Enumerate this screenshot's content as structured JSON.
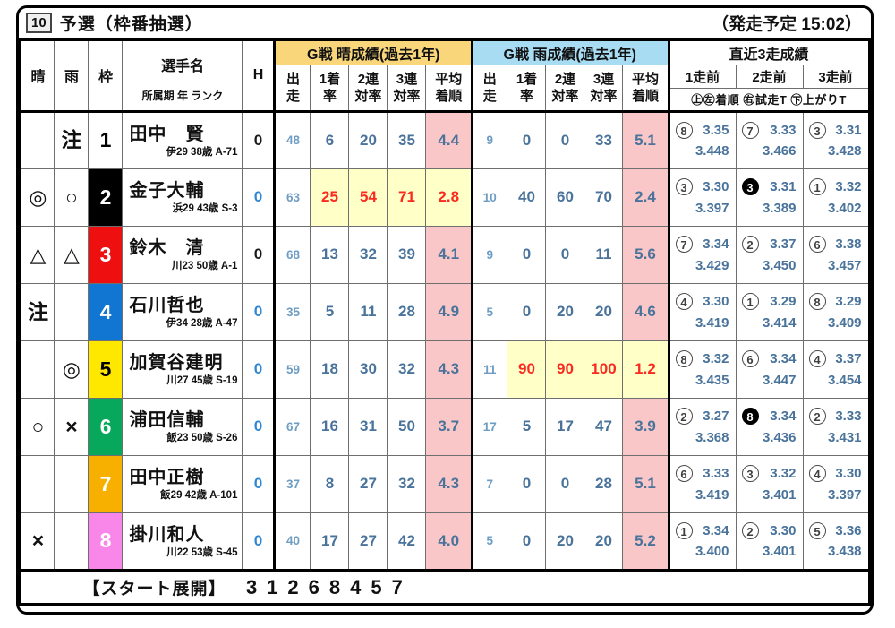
{
  "page": {
    "race_number": "10",
    "race_title": "予選（枠番抽選）",
    "start_time": "（発走予定 15:02）"
  },
  "header": {
    "sun": "晴",
    "rain": "雨",
    "frame": "枠",
    "racer_name": "選手名",
    "racer_sub": "所属期 年 ランク",
    "handicap": "H",
    "sunny_group": "G戦 晴成績(過去1年)",
    "rain_group": "G戦 雨成績(過去1年)",
    "recent_group": "直近3走成績",
    "stat_cols": [
      "出\n走",
      "1着\n率",
      "2連\n対率",
      "3連\n対率",
      "平均\n着順"
    ],
    "recent_cols": [
      "1走前",
      "2走前",
      "3走前"
    ],
    "recent_legend": "㊤㊧着順 ㊨試走T ㊦上がりT"
  },
  "colors": {
    "sunny_header": "#f9d679",
    "rain_header": "#a7dcf3",
    "pink_cell": "#f9c7c7",
    "highlight_cell": "#ffffc8",
    "red_text": "#fb2a20",
    "stat_text": "#49739b",
    "starts_text": "#6e9dc4",
    "h_blue": "#2f86d2",
    "h_dark": "#1a1a1a",
    "rank_text": "#3f3f3f"
  },
  "rows": [
    {
      "sun": "",
      "rain": "注",
      "frame": "1",
      "frame_bg": "#ffffff",
      "frame_fg": "#000000",
      "name": "田中　賢",
      "info": "伊29 38歳 A-71",
      "h": "0",
      "h_style": "dark",
      "sunny": [
        "48",
        "6",
        "20",
        "35",
        "4.4"
      ],
      "sunny_hl": false,
      "rain_stats": [
        "9",
        "0",
        "0",
        "33",
        "5.1"
      ],
      "rain_hl": false,
      "recent": [
        {
          "rank": "8",
          "filled": false,
          "t1": "3.35",
          "t2": "3.448"
        },
        {
          "rank": "7",
          "filled": false,
          "t1": "3.33",
          "t2": "3.466"
        },
        {
          "rank": "3",
          "filled": false,
          "t1": "3.31",
          "t2": "3.428"
        }
      ]
    },
    {
      "sun": "◎",
      "rain": "○",
      "frame": "2",
      "frame_bg": "#000000",
      "frame_fg": "#ffffff",
      "name": "金子大輔",
      "info": "浜29 43歳 S-3",
      "h": "0",
      "h_style": "blue",
      "sunny": [
        "63",
        "25",
        "54",
        "71",
        "2.8"
      ],
      "sunny_hl": true,
      "rain_stats": [
        "10",
        "40",
        "60",
        "70",
        "2.4"
      ],
      "rain_hl": false,
      "recent": [
        {
          "rank": "3",
          "filled": false,
          "t1": "3.30",
          "t2": "3.397"
        },
        {
          "rank": "3",
          "filled": true,
          "t1": "3.31",
          "t2": "3.389"
        },
        {
          "rank": "1",
          "filled": false,
          "t1": "3.32",
          "t2": "3.402"
        }
      ]
    },
    {
      "sun": "△",
      "rain": "△",
      "frame": "3",
      "frame_bg": "#ee1010",
      "frame_fg": "#ffffff",
      "name": "鈴木　清",
      "info": "川23 50歳 A-1",
      "h": "0",
      "h_style": "dark",
      "sunny": [
        "68",
        "13",
        "32",
        "39",
        "4.1"
      ],
      "sunny_hl": false,
      "rain_stats": [
        "9",
        "0",
        "0",
        "11",
        "5.6"
      ],
      "rain_hl": false,
      "recent": [
        {
          "rank": "7",
          "filled": false,
          "t1": "3.34",
          "t2": "3.429"
        },
        {
          "rank": "2",
          "filled": false,
          "t1": "3.37",
          "t2": "3.450"
        },
        {
          "rank": "6",
          "filled": false,
          "t1": "3.38",
          "t2": "3.457"
        }
      ]
    },
    {
      "sun": "注",
      "rain": "",
      "frame": "4",
      "frame_bg": "#1076d2",
      "frame_fg": "#ffffff",
      "name": "石川哲也",
      "info": "伊34 28歳 A-47",
      "h": "0",
      "h_style": "blue",
      "sunny": [
        "35",
        "5",
        "11",
        "28",
        "4.9"
      ],
      "sunny_hl": false,
      "rain_stats": [
        "5",
        "0",
        "20",
        "20",
        "4.6"
      ],
      "rain_hl": false,
      "recent": [
        {
          "rank": "4",
          "filled": false,
          "t1": "3.30",
          "t2": "3.419"
        },
        {
          "rank": "1",
          "filled": false,
          "t1": "3.29",
          "t2": "3.414"
        },
        {
          "rank": "8",
          "filled": false,
          "t1": "3.29",
          "t2": "3.409"
        }
      ]
    },
    {
      "sun": "",
      "rain": "◎",
      "frame": "5",
      "frame_bg": "#ffe800",
      "frame_fg": "#000000",
      "name": "加賀谷建明",
      "info": "川27 45歳 S-19",
      "h": "0",
      "h_style": "blue",
      "sunny": [
        "59",
        "18",
        "30",
        "32",
        "4.3"
      ],
      "sunny_hl": false,
      "rain_stats": [
        "11",
        "90",
        "90",
        "100",
        "1.2"
      ],
      "rain_hl": true,
      "recent": [
        {
          "rank": "8",
          "filled": false,
          "t1": "3.32",
          "t2": "3.435"
        },
        {
          "rank": "6",
          "filled": false,
          "t1": "3.34",
          "t2": "3.447"
        },
        {
          "rank": "4",
          "filled": false,
          "t1": "3.37",
          "t2": "3.454"
        }
      ]
    },
    {
      "sun": "○",
      "rain": "×",
      "frame": "6",
      "frame_bg": "#08a85c",
      "frame_fg": "#ffffff",
      "name": "浦田信輔",
      "info": "飯23 50歳 S-26",
      "h": "0",
      "h_style": "blue",
      "sunny": [
        "67",
        "16",
        "31",
        "50",
        "3.7"
      ],
      "sunny_hl": false,
      "rain_stats": [
        "17",
        "5",
        "17",
        "47",
        "3.9"
      ],
      "rain_hl": false,
      "recent": [
        {
          "rank": "2",
          "filled": false,
          "t1": "3.27",
          "t2": "3.368"
        },
        {
          "rank": "8",
          "filled": true,
          "t1": "3.34",
          "t2": "3.436"
        },
        {
          "rank": "2",
          "filled": false,
          "t1": "3.33",
          "t2": "3.431"
        }
      ]
    },
    {
      "sun": "",
      "rain": "",
      "frame": "7",
      "frame_bg": "#f8b000",
      "frame_fg": "#ffffff",
      "name": "田中正樹",
      "info": "飯29 42歳 A-101",
      "h": "0",
      "h_style": "blue",
      "sunny": [
        "37",
        "8",
        "27",
        "32",
        "4.3"
      ],
      "sunny_hl": false,
      "rain_stats": [
        "7",
        "0",
        "0",
        "28",
        "5.1"
      ],
      "rain_hl": false,
      "recent": [
        {
          "rank": "6",
          "filled": false,
          "t1": "3.33",
          "t2": "3.419"
        },
        {
          "rank": "3",
          "filled": false,
          "t1": "3.32",
          "t2": "3.401"
        },
        {
          "rank": "4",
          "filled": false,
          "t1": "3.30",
          "t2": "3.397"
        }
      ]
    },
    {
      "sun": "×",
      "rain": "",
      "frame": "8",
      "frame_bg": "#f987e9",
      "frame_fg": "#ffffff",
      "name": "掛川和人",
      "info": "川22 53歳 S-45",
      "h": "0",
      "h_style": "blue",
      "sunny": [
        "40",
        "17",
        "27",
        "42",
        "4.0"
      ],
      "sunny_hl": false,
      "rain_stats": [
        "5",
        "0",
        "20",
        "20",
        "5.2"
      ],
      "rain_hl": false,
      "recent": [
        {
          "rank": "1",
          "filled": false,
          "t1": "3.34",
          "t2": "3.400"
        },
        {
          "rank": "2",
          "filled": false,
          "t1": "3.30",
          "t2": "3.401"
        },
        {
          "rank": "5",
          "filled": false,
          "t1": "3.36",
          "t2": "3.438"
        }
      ]
    }
  ],
  "footer": {
    "label": "【スタート展開】",
    "start_order": "31268457"
  }
}
